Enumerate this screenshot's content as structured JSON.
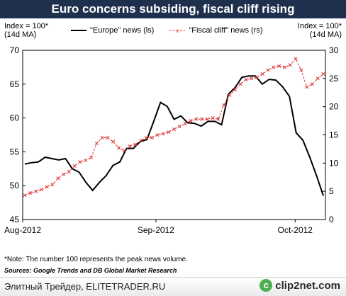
{
  "title": "Euro concerns subsiding, fiscal cliff rising",
  "left_axis_note": [
    "Index = 100*",
    "(14d MA)"
  ],
  "right_axis_note": [
    "Index = 100*",
    "(14d MA)"
  ],
  "note": "*Note: The number 100 represents the peak news volume.",
  "sources": "Sources: Google Trends and DB Global Market Research",
  "footer": {
    "text": "Элитный Трейдер, ELITETRADER.RU",
    "logo": "clip2net.com",
    "logo_icon": "c"
  },
  "colors": {
    "title_bg": "#1f2f4e",
    "europe": "#000000",
    "fiscal": "#e03030"
  },
  "chart_data": {
    "type": "line",
    "title": "Euro concerns subsiding, fiscal cliff rising",
    "xlabel": "",
    "x_tick_labels": [
      "Aug-2012",
      "Sep-2012",
      "Oct-2012"
    ],
    "y_left": {
      "lim": [
        45,
        70
      ],
      "ticks": [
        45,
        50,
        55,
        60,
        65,
        70
      ],
      "label": "Index = 100* (14d MA)"
    },
    "y_right": {
      "lim": [
        0,
        30
      ],
      "ticks": [
        0,
        5,
        10,
        15,
        20,
        25,
        30
      ],
      "label": "Index = 100* (14d MA)"
    },
    "grid": false,
    "legend": "top",
    "series": [
      {
        "name": "\"Europe\" news (ls)",
        "axis": "left",
        "style": "solid-black",
        "values": [
          53.2,
          53.4,
          53.5,
          54.2,
          54.0,
          53.8,
          54.0,
          52.5,
          52.0,
          50.5,
          49.3,
          50.5,
          51.5,
          53.0,
          53.5,
          55.5,
          55.5,
          56.5,
          56.8,
          59.5,
          62.3,
          61.7,
          59.8,
          60.3,
          59.3,
          59.2,
          58.8,
          59.5,
          59.5,
          59.0,
          63.5,
          64.5,
          66.0,
          66.2,
          66.2,
          65.0,
          65.7,
          65.6,
          64.6,
          63.2,
          57.8,
          56.7,
          54.2,
          51.5,
          48.5
        ]
      },
      {
        "name": "\"Fiscal cliff\" news (rs)",
        "axis": "right",
        "style": "dashed-red-x",
        "values": [
          4.3,
          4.7,
          5.0,
          5.3,
          5.8,
          6.2,
          7.3,
          8.0,
          8.5,
          9.5,
          10.2,
          10.5,
          11.0,
          13.5,
          14.5,
          14.5,
          13.8,
          12.7,
          12.2,
          13.0,
          13.3,
          14.0,
          14.5,
          14.5,
          15.0,
          15.2,
          15.5,
          16.0,
          16.5,
          17.0,
          17.5,
          17.8,
          17.8,
          17.8,
          18.0,
          17.8,
          20.3,
          22.0,
          23.0,
          24.0,
          24.8,
          25.0,
          25.2,
          25.8,
          26.5,
          27.0,
          27.2,
          27.0,
          27.4,
          28.5,
          26.5,
          23.5,
          24.0,
          25.0,
          25.8
        ]
      }
    ]
  }
}
